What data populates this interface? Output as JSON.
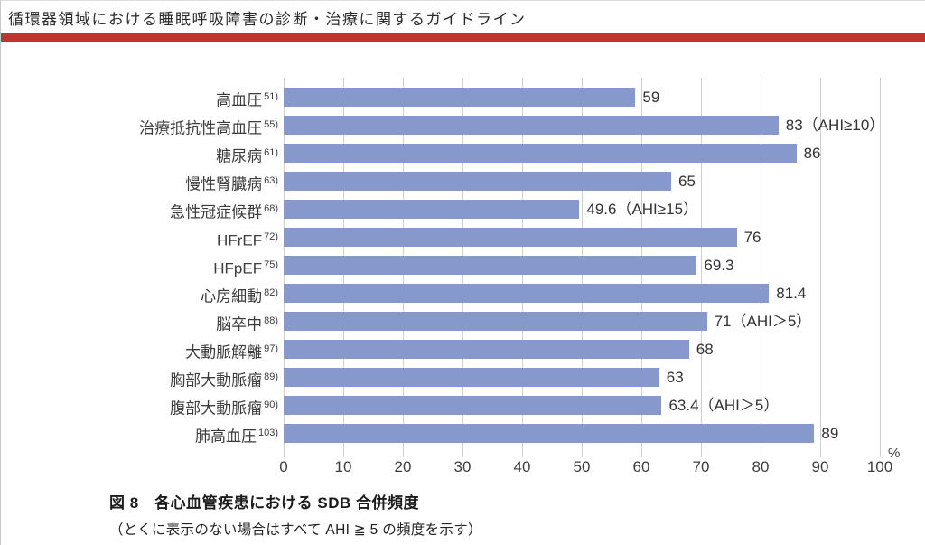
{
  "page": {
    "header": "循環器領域における睡眠呼吸障害の診断・治療に関するガイドライン"
  },
  "figure": {
    "caption_title": "図 8　各心血管疾患における SDB 合併頻度",
    "caption_note": "（とくに表示のない場合はすべて AHI ≧ 5 の頻度を示す）"
  },
  "chart_data": {
    "type": "bar",
    "orientation": "horizontal",
    "title": "図 8　各心血管疾患における SDB 合併頻度",
    "note": "（とくに表示のない場合はすべて AHI ≧ 5 の頻度を示す）",
    "unit": "%",
    "xlim": [
      0,
      100
    ],
    "x_ticks": [
      0,
      10,
      20,
      30,
      40,
      50,
      60,
      70,
      80,
      90,
      100
    ],
    "grid": true,
    "legend": "none",
    "categories": [
      "高血圧",
      "治療抵抗性高血圧",
      "糖尿病",
      "慢性腎臓病",
      "急性冠症候群",
      "HFrEF",
      "HFpEF",
      "心房細動",
      "脳卒中",
      "大動脈解離",
      "胸部大動脈瘤",
      "腹部大動脈瘤",
      "肺高血圧"
    ],
    "reference_marks": [
      "51)",
      "55)",
      "61)",
      "63)",
      "68)",
      "72)",
      "75)",
      "82)",
      "88)",
      "97)",
      "89)",
      "90)",
      "103)"
    ],
    "values": [
      59,
      83,
      86,
      65,
      49.6,
      76,
      69.3,
      81.4,
      71,
      68,
      63,
      63.4,
      89
    ],
    "value_labels": [
      "59",
      "83（AHI≥10）",
      "86",
      "65",
      "49.6（AHI≥15）",
      "76",
      "69.3",
      "81.4",
      "71（AHI＞5）",
      "68",
      "63",
      "63.4（AHI＞5）",
      "89"
    ]
  },
  "colors": {
    "accent_red": "#c2332f",
    "bar_blue": "#8799cc",
    "grid": "#cfcfcf"
  }
}
